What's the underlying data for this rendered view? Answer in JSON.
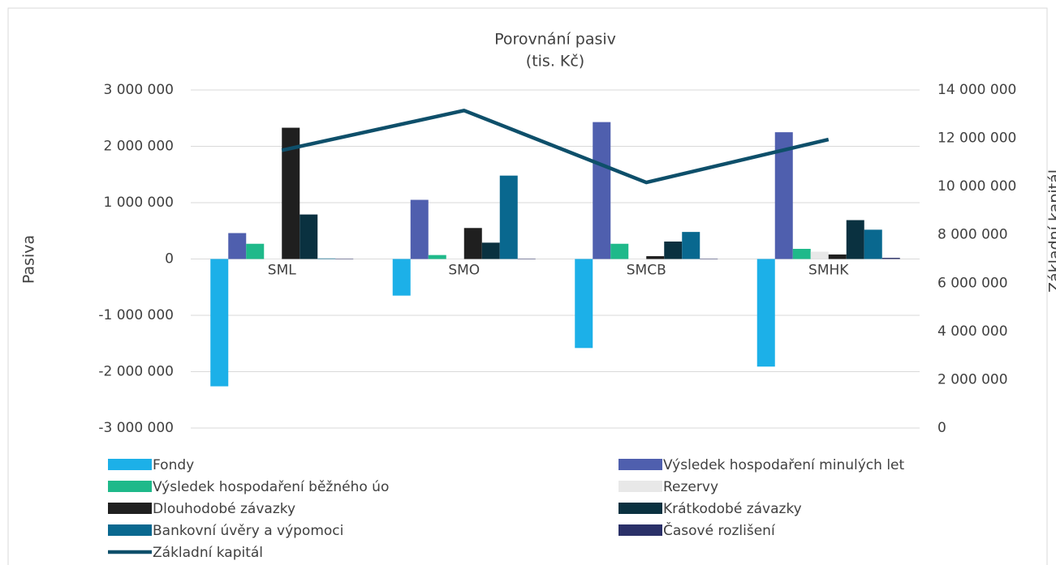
{
  "chart_data": {
    "type": "bar",
    "title": "Porovnání pasiv",
    "subtitle": "(tis. Kč)",
    "y_label": "Pasiva",
    "y2_label": "Základní kapitál",
    "categories": [
      "SML",
      "SMO",
      "SMCB",
      "SMHK"
    ],
    "ylim": [
      -3000000,
      3000000
    ],
    "yticks": [
      {
        "value": -3000000,
        "label": "-3 000 000"
      },
      {
        "value": -2000000,
        "label": "-2 000 000"
      },
      {
        "value": -1000000,
        "label": "-1 000 000"
      },
      0,
      {
        "value": 1000000,
        "label": "1 000 000"
      },
      {
        "value": 2000000,
        "label": "2 000 000"
      },
      {
        "value": 3000000,
        "label": "3 000 000"
      }
    ],
    "y2lim": [
      0,
      14000000
    ],
    "y2ticks": [
      0,
      {
        "value": 2000000,
        "label": "2 000 000"
      },
      {
        "value": 4000000,
        "label": "4 000 000"
      },
      {
        "value": 6000000,
        "label": "6 000 000"
      },
      {
        "value": 8000000,
        "label": "8 000 000"
      },
      {
        "value": 10000000,
        "label": "10 000 000"
      },
      {
        "value": 12000000,
        "label": "12 000 000"
      },
      {
        "value": 14000000,
        "label": "14 000 000"
      }
    ],
    "grid": true,
    "series": [
      {
        "name": "Fondy",
        "color": "#1cb0e8",
        "values": [
          -2260000,
          -650000,
          -1580000,
          -1910000
        ]
      },
      {
        "name": "Výsledek hospodaření minulých let",
        "color": "#4f5fae",
        "values": [
          460000,
          1050000,
          2430000,
          2250000
        ]
      },
      {
        "name": "Výsledek hospodaření běžného úo",
        "color": "#1fb98a",
        "values": [
          270000,
          70000,
          270000,
          180000
        ]
      },
      {
        "name": "Rezervy",
        "color": "#e8e8e8",
        "values": [
          0,
          0,
          0,
          130000
        ]
      },
      {
        "name": "Dlouhodobé závazky",
        "color": "#1f1f1f",
        "values": [
          2330000,
          550000,
          50000,
          80000
        ]
      },
      {
        "name": "Krátkodobé závazky",
        "color": "#0a3140",
        "values": [
          790000,
          290000,
          310000,
          690000
        ]
      },
      {
        "name": "Bankovní úvěry a výpomoci",
        "color": "#09688f",
        "values": [
          10000,
          1480000,
          480000,
          520000
        ]
      },
      {
        "name": "Časové rozlišení",
        "color": "#2a3068",
        "values": [
          0,
          0,
          0,
          20000
        ]
      },
      {
        "name": "Základní kapitál",
        "color": "#0e4f6a",
        "type": "line",
        "axis": "y2",
        "values": [
          11500000,
          13150000,
          10170000,
          11950000
        ]
      }
    ]
  }
}
